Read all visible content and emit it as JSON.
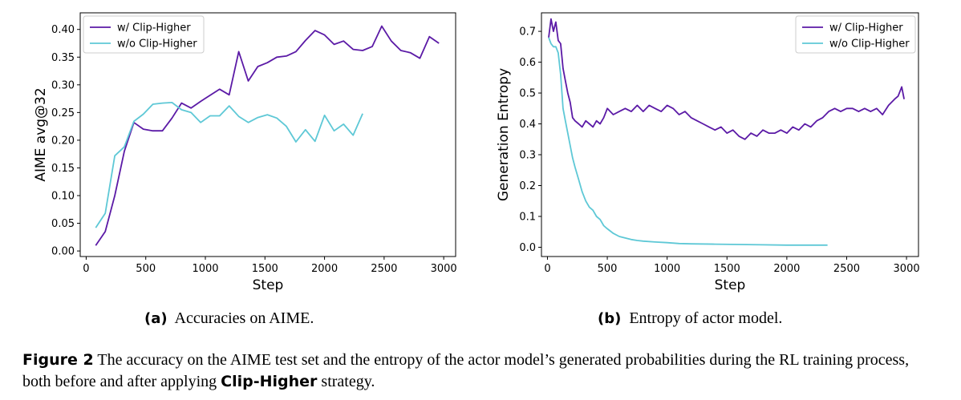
{
  "chart_data": [
    {
      "type": "line",
      "xlabel": "Step",
      "ylabel": "AIME avg@32",
      "xlim": [
        -50,
        3100
      ],
      "ylim": [
        -0.01,
        0.43
      ],
      "xticks": [
        0,
        500,
        1000,
        1500,
        2000,
        2500,
        3000
      ],
      "yticks": [
        0.0,
        0.05,
        0.1,
        0.15,
        0.2,
        0.25,
        0.3,
        0.35,
        0.4
      ],
      "ytick_labels": [
        "0.00",
        "0.05",
        "0.10",
        "0.15",
        "0.20",
        "0.25",
        "0.30",
        "0.35",
        "0.40"
      ],
      "legend": "top-left",
      "series": [
        {
          "name": "w/ Clip-Higher",
          "color": "#5b1aa6",
          "x": [
            80,
            160,
            240,
            320,
            400,
            480,
            560,
            640,
            720,
            800,
            880,
            960,
            1040,
            1120,
            1200,
            1280,
            1360,
            1440,
            1520,
            1600,
            1680,
            1760,
            1840,
            1920,
            2000,
            2080,
            2160,
            2240,
            2320,
            2400,
            2480,
            2560,
            2640,
            2720,
            2800,
            2880,
            2960
          ],
          "y": [
            0.01,
            0.035,
            0.1,
            0.18,
            0.232,
            0.22,
            0.217,
            0.217,
            0.24,
            0.267,
            0.258,
            0.27,
            0.281,
            0.292,
            0.282,
            0.36,
            0.307,
            0.333,
            0.34,
            0.35,
            0.352,
            0.36,
            0.38,
            0.398,
            0.39,
            0.373,
            0.379,
            0.364,
            0.362,
            0.369,
            0.406,
            0.379,
            0.362,
            0.358,
            0.348,
            0.387,
            0.375
          ]
        },
        {
          "name": "w/o Clip-Higher",
          "color": "#5ec8d6",
          "x": [
            80,
            160,
            240,
            320,
            400,
            480,
            560,
            640,
            720,
            800,
            880,
            960,
            1040,
            1120,
            1200,
            1280,
            1360,
            1440,
            1520,
            1600,
            1680,
            1760,
            1840,
            1920,
            2000,
            2080,
            2160,
            2240,
            2320
          ],
          "y": [
            0.042,
            0.068,
            0.172,
            0.188,
            0.234,
            0.247,
            0.265,
            0.267,
            0.268,
            0.255,
            0.25,
            0.232,
            0.244,
            0.244,
            0.262,
            0.243,
            0.232,
            0.241,
            0.246,
            0.24,
            0.225,
            0.197,
            0.219,
            0.198,
            0.245,
            0.217,
            0.229,
            0.209,
            0.248
          ]
        }
      ]
    },
    {
      "type": "line",
      "xlabel": "Step",
      "ylabel": "Generation Entropy",
      "xlim": [
        -50,
        3100
      ],
      "ylim": [
        -0.03,
        0.76
      ],
      "xticks": [
        0,
        500,
        1000,
        1500,
        2000,
        2500,
        3000
      ],
      "yticks": [
        0.0,
        0.1,
        0.2,
        0.3,
        0.4,
        0.5,
        0.6,
        0.7
      ],
      "ytick_labels": [
        "0.0",
        "0.1",
        "0.2",
        "0.3",
        "0.4",
        "0.5",
        "0.6",
        "0.7"
      ],
      "legend": "top-right",
      "series": [
        {
          "name": "w/ Clip-Higher",
          "color": "#5b1aa6",
          "x": [
            10,
            30,
            50,
            70,
            90,
            110,
            130,
            150,
            170,
            190,
            210,
            230,
            260,
            290,
            320,
            350,
            380,
            410,
            440,
            470,
            500,
            550,
            600,
            650,
            700,
            750,
            800,
            850,
            900,
            950,
            1000,
            1050,
            1100,
            1150,
            1200,
            1250,
            1300,
            1350,
            1400,
            1450,
            1500,
            1550,
            1600,
            1650,
            1700,
            1750,
            1800,
            1850,
            1900,
            1950,
            2000,
            2050,
            2100,
            2150,
            2200,
            2250,
            2300,
            2350,
            2400,
            2450,
            2500,
            2550,
            2600,
            2650,
            2700,
            2750,
            2800,
            2850,
            2900,
            2930,
            2960,
            2980
          ],
          "y": [
            0.68,
            0.74,
            0.7,
            0.73,
            0.67,
            0.66,
            0.58,
            0.54,
            0.5,
            0.47,
            0.42,
            0.41,
            0.4,
            0.39,
            0.41,
            0.4,
            0.39,
            0.41,
            0.4,
            0.42,
            0.45,
            0.43,
            0.44,
            0.45,
            0.44,
            0.46,
            0.44,
            0.46,
            0.45,
            0.44,
            0.46,
            0.45,
            0.43,
            0.44,
            0.42,
            0.41,
            0.4,
            0.39,
            0.38,
            0.39,
            0.37,
            0.38,
            0.36,
            0.35,
            0.37,
            0.36,
            0.38,
            0.37,
            0.37,
            0.38,
            0.37,
            0.39,
            0.38,
            0.4,
            0.39,
            0.41,
            0.42,
            0.44,
            0.45,
            0.44,
            0.45,
            0.45,
            0.44,
            0.45,
            0.44,
            0.45,
            0.43,
            0.46,
            0.48,
            0.49,
            0.52,
            0.48
          ]
        },
        {
          "name": "w/o Clip-Higher",
          "color": "#5ec8d6",
          "x": [
            10,
            30,
            50,
            70,
            90,
            110,
            130,
            150,
            170,
            190,
            210,
            230,
            260,
            290,
            320,
            350,
            380,
            410,
            440,
            470,
            500,
            550,
            600,
            650,
            700,
            750,
            800,
            900,
            1000,
            1100,
            1200,
            1400,
            1600,
            1800,
            2000,
            2200,
            2340
          ],
          "y": [
            0.68,
            0.66,
            0.65,
            0.65,
            0.63,
            0.56,
            0.45,
            0.41,
            0.37,
            0.33,
            0.29,
            0.26,
            0.22,
            0.18,
            0.15,
            0.13,
            0.12,
            0.1,
            0.09,
            0.07,
            0.06,
            0.045,
            0.035,
            0.03,
            0.025,
            0.022,
            0.02,
            0.017,
            0.015,
            0.012,
            0.011,
            0.01,
            0.009,
            0.008,
            0.007,
            0.007,
            0.007
          ]
        }
      ]
    }
  ],
  "captions": {
    "a_label": "(a)",
    "a_text": "Accuracies on AIME.",
    "b_label": "(b)",
    "b_text": "Entropy of actor model.",
    "figure_label": "Figure 2",
    "figure_text_1": "The accuracy on the AIME test set and the entropy of the actor model’s generated probabilities during the RL training process, both before and after applying",
    "figure_bold": "Clip-Higher",
    "figure_text_2": "strategy."
  }
}
